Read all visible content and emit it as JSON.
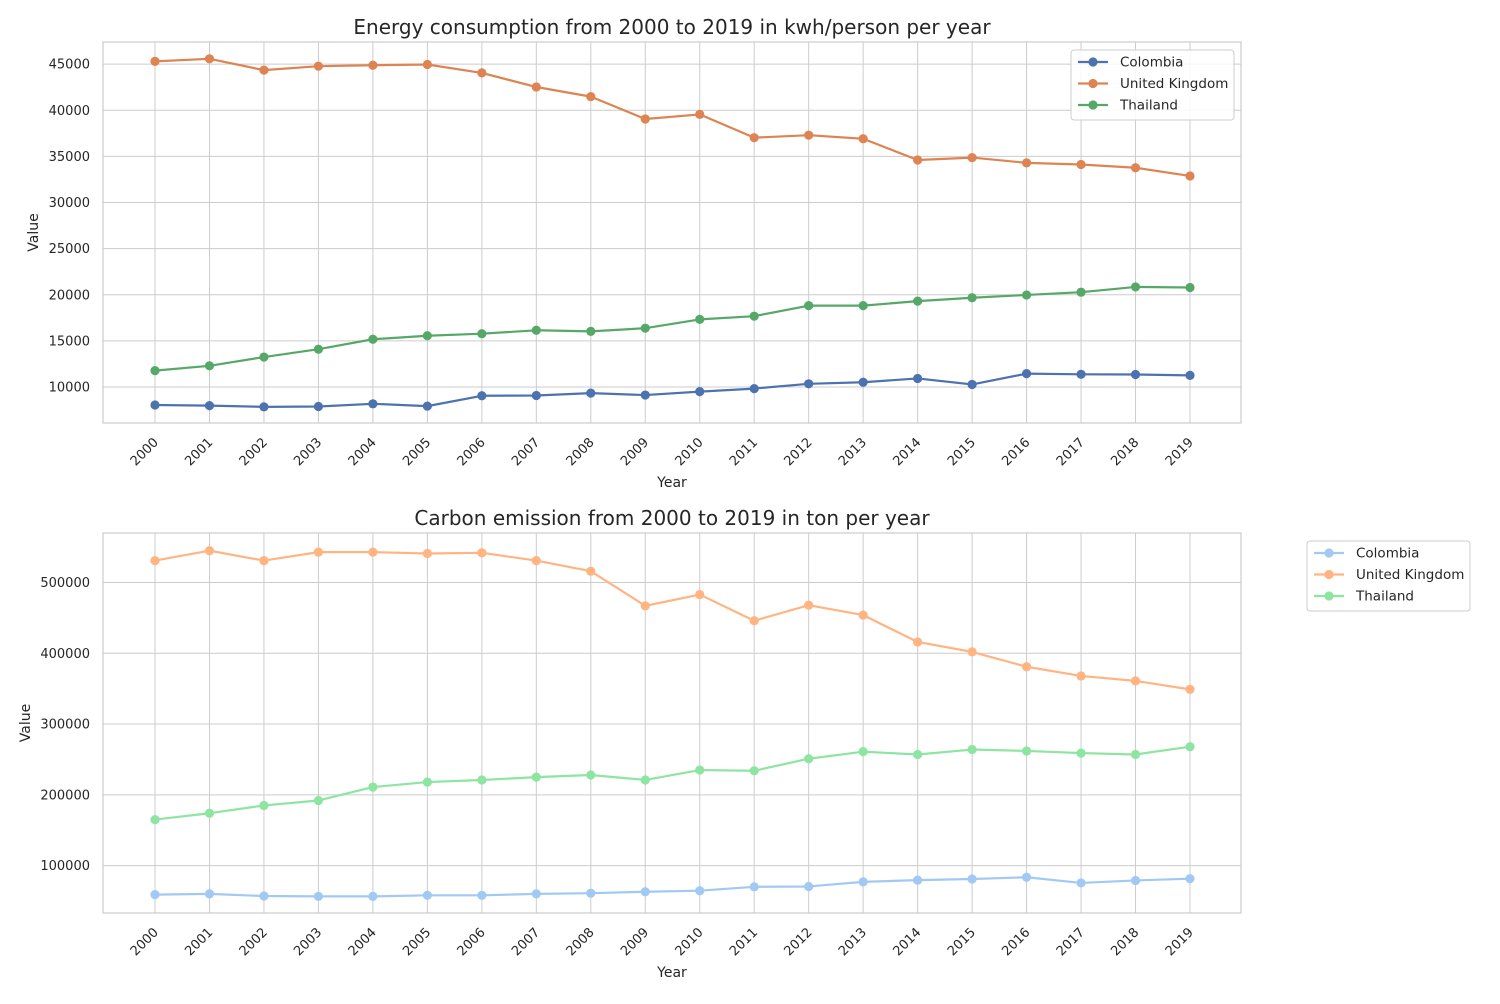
{
  "chart_data": [
    {
      "type": "line",
      "title": "Energy consumption from 2000 to 2019 in kwh/person per year",
      "xlabel": "Year",
      "ylabel": "Value",
      "categories": [
        "2000",
        "2001",
        "2002",
        "2003",
        "2004",
        "2005",
        "2006",
        "2007",
        "2008",
        "2009",
        "2010",
        "2011",
        "2012",
        "2013",
        "2014",
        "2015",
        "2016",
        "2017",
        "2018",
        "2019"
      ],
      "yticks": [
        10000,
        15000,
        20000,
        25000,
        30000,
        35000,
        40000,
        45000
      ],
      "ylim": [
        6100,
        47400
      ],
      "grid": true,
      "legend_position": "upper right",
      "series": [
        {
          "name": "Colombia",
          "color": "#4c72b0",
          "values": [
            8050,
            7980,
            7850,
            7890,
            8180,
            7930,
            9050,
            9080,
            9340,
            9130,
            9500,
            9830,
            10350,
            10520,
            10930,
            10280,
            11450,
            11380,
            11360,
            11260
          ]
        },
        {
          "name": "United Kingdom",
          "color": "#dd8452",
          "values": [
            45300,
            45580,
            44350,
            44780,
            44880,
            44960,
            44050,
            42520,
            41480,
            39050,
            39550,
            37030,
            37300,
            36910,
            34610,
            34870,
            34300,
            34120,
            33770,
            32880
          ]
        },
        {
          "name": "Thailand",
          "color": "#55a868",
          "values": [
            11780,
            12300,
            13250,
            14100,
            15180,
            15560,
            15780,
            16150,
            16030,
            16380,
            17330,
            17680,
            18820,
            18820,
            19310,
            19680,
            19980,
            20280,
            20850,
            20790
          ]
        }
      ]
    },
    {
      "type": "line",
      "title": "Carbon emission from 2000 to 2019 in ton per year",
      "xlabel": "Year",
      "ylabel": "Value",
      "categories": [
        "2000",
        "2001",
        "2002",
        "2003",
        "2004",
        "2005",
        "2006",
        "2007",
        "2008",
        "2009",
        "2010",
        "2011",
        "2012",
        "2013",
        "2014",
        "2015",
        "2016",
        "2017",
        "2018",
        "2019"
      ],
      "yticks": [
        100000,
        200000,
        300000,
        400000,
        500000
      ],
      "ylim": [
        33000,
        570000
      ],
      "grid": true,
      "legend_position": "outside right",
      "series": [
        {
          "name": "Colombia",
          "color": "#a1c9f4",
          "values": [
            59000,
            60000,
            57000,
            56500,
            56500,
            58000,
            58000,
            60000,
            61000,
            63000,
            64500,
            70000,
            70500,
            77000,
            79500,
            81000,
            83500,
            75500,
            79000,
            81500
          ]
        },
        {
          "name": "United Kingdom",
          "color": "#ffb482",
          "values": [
            531000,
            545000,
            531000,
            543000,
            543000,
            541000,
            542000,
            531000,
            516000,
            467000,
            483000,
            446000,
            468000,
            454000,
            416000,
            402000,
            381000,
            368000,
            361000,
            349000
          ]
        },
        {
          "name": "Thailand",
          "color": "#8de5a1",
          "values": [
            165000,
            174000,
            185000,
            192000,
            211000,
            218000,
            221000,
            225000,
            228000,
            221000,
            235000,
            234000,
            251000,
            261000,
            257000,
            264000,
            262000,
            259000,
            257000,
            268000
          ]
        }
      ]
    }
  ]
}
